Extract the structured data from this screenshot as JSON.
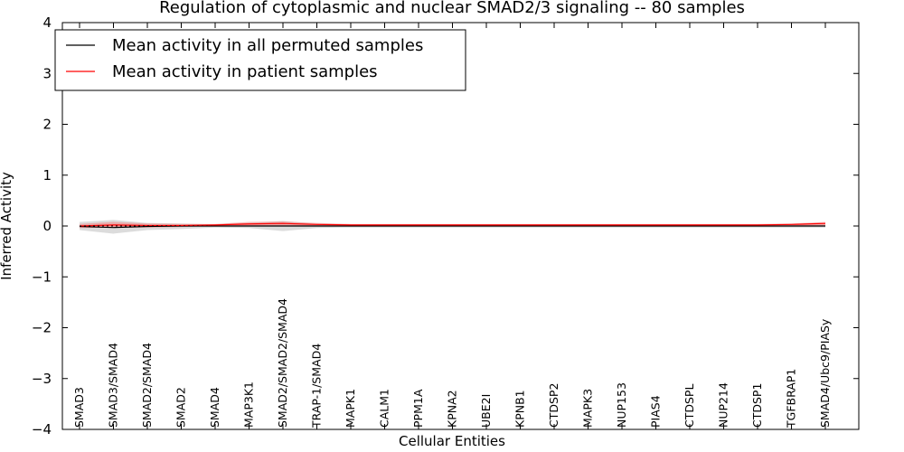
{
  "chart_data": {
    "type": "line",
    "title": "Regulation of cytoplasmic and nuclear SMAD2/3 signaling -- 80 samples",
    "xlabel": "Cellular Entities",
    "ylabel": "Inferred Activity",
    "ylim": [
      -4,
      4
    ],
    "yticks": [
      4,
      3,
      2,
      1,
      0,
      -1,
      -2,
      -3,
      -4
    ],
    "ytick_labels": [
      "4",
      "3",
      "2",
      "1",
      "0",
      "−1",
      "−2",
      "−3",
      "−4"
    ],
    "grid": false,
    "legend_position": "top-left",
    "categories": [
      "SMAD3",
      "SMAD3/SMAD4",
      "SMAD2/SMAD4",
      "SMAD2",
      "SMAD4",
      "MAP3K1",
      "SMAD2/SMAD2/SMAD4",
      "TRAP-1/SMAD4",
      "MAPK1",
      "CALM1",
      "PPM1A",
      "KPNA2",
      "UBE2I",
      "KPNB1",
      "CTDSP2",
      "MAPK3",
      "NUP153",
      "PIAS4",
      "CTDSPL",
      "NUP214",
      "CTDSP1",
      "TGFBRAP1",
      "SMAD4/Ubc9/PIASy"
    ],
    "series": [
      {
        "name": "Mean activity in all permuted samples",
        "color": "#000000",
        "values": [
          -0.01,
          -0.03,
          -0.01,
          0.0,
          0.0,
          0.0,
          0.0,
          0.0,
          0.0,
          0.0,
          0.0,
          0.0,
          0.0,
          0.0,
          0.0,
          0.0,
          0.0,
          0.0,
          0.0,
          0.0,
          0.0,
          0.0,
          0.0
        ],
        "band_lower": [
          -0.08,
          -0.15,
          -0.08,
          -0.06,
          -0.03,
          -0.04,
          -0.1,
          -0.04,
          -0.03,
          -0.03,
          -0.03,
          -0.03,
          -0.03,
          -0.03,
          -0.03,
          -0.03,
          -0.03,
          -0.03,
          -0.03,
          -0.03,
          -0.03,
          -0.03,
          -0.03
        ],
        "band_upper": [
          0.08,
          0.12,
          0.06,
          0.05,
          0.03,
          0.06,
          0.1,
          0.04,
          0.03,
          0.03,
          0.03,
          0.03,
          0.03,
          0.03,
          0.03,
          0.03,
          0.03,
          0.03,
          0.03,
          0.03,
          0.03,
          0.03,
          0.03
        ],
        "band_color": "#bfbfbf"
      },
      {
        "name": "Mean activity in patient samples",
        "color": "#ff0000",
        "values": [
          0.0,
          0.02,
          0.01,
          0.01,
          0.02,
          0.04,
          0.05,
          0.03,
          0.02,
          0.02,
          0.02,
          0.02,
          0.02,
          0.02,
          0.02,
          0.02,
          0.02,
          0.02,
          0.02,
          0.02,
          0.02,
          0.03,
          0.05
        ],
        "band_lower": [
          -0.04,
          -0.03,
          -0.03,
          -0.02,
          0.0,
          0.0,
          0.0,
          0.0,
          0.0,
          0.0,
          0.0,
          0.0,
          0.0,
          0.0,
          0.0,
          0.0,
          0.0,
          0.0,
          0.0,
          0.0,
          0.0,
          0.0,
          0.0
        ],
        "band_upper": [
          0.04,
          0.08,
          0.05,
          0.04,
          0.04,
          0.08,
          0.09,
          0.06,
          0.04,
          0.04,
          0.04,
          0.04,
          0.04,
          0.04,
          0.04,
          0.04,
          0.04,
          0.04,
          0.04,
          0.04,
          0.04,
          0.05,
          0.08
        ],
        "band_color": "#f08080"
      }
    ],
    "reference_line": {
      "y": 0,
      "style": "dotted",
      "color": "#000000"
    }
  }
}
